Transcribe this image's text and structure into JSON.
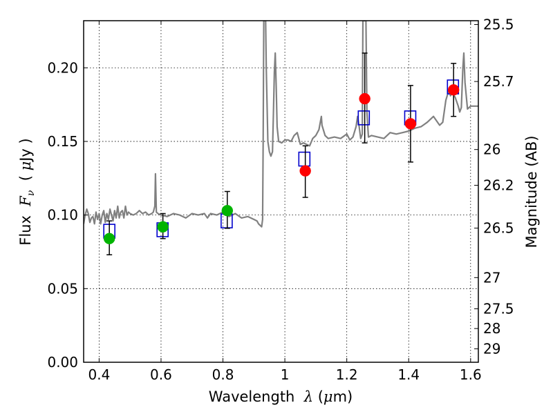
{
  "chart_data": {
    "type": "scatter",
    "xlabel": {
      "pre": "Wavelength  ",
      "sym": "λ",
      "post": " (",
      "mu": "μ",
      "unit": "m)"
    },
    "ylabel": {
      "pre": "Flux  ",
      "sym": "F",
      "sub": "ν",
      "mid": "  ( ",
      "mu": "μ",
      "unit": "Jy )"
    },
    "ylabel_right": "Magnitude (AB)",
    "xlim": [
      0.35,
      1.625
    ],
    "ylim": [
      0.0,
      0.232
    ],
    "x_ticks": [
      0.4,
      0.6,
      0.8,
      1.0,
      1.2,
      1.4,
      1.6
    ],
    "x_tick_labels": [
      "0.4",
      "0.6",
      "0.8",
      "1",
      "1.2",
      "1.4",
      "1.6"
    ],
    "y_ticks": [
      0.0,
      0.05,
      0.1,
      0.15,
      0.2
    ],
    "y_tick_labels": [
      "0.00",
      "0.05",
      "0.10",
      "0.15",
      "0.20"
    ],
    "mag_ticks": [
      {
        "value": 0.2294,
        "label": "25.5"
      },
      {
        "value": 0.1907,
        "label": "25.7"
      },
      {
        "value": 0.1445,
        "label": "26"
      },
      {
        "value": 0.1202,
        "label": "26.2"
      },
      {
        "value": 0.0911,
        "label": "26.5"
      },
      {
        "value": 0.0575,
        "label": "27"
      },
      {
        "value": 0.0363,
        "label": "27.5"
      },
      {
        "value": 0.0229,
        "label": "28"
      },
      {
        "value": 0.0091,
        "label": "29"
      }
    ],
    "grid": true,
    "colors": {
      "model_spectrum": "#808080",
      "model_bands": "#0000cc",
      "optical_points": "#00b400",
      "nir_points": "#ff0000",
      "errorbars": "#000000"
    },
    "series": [
      {
        "kind": "line",
        "points": [
          [
            0.35,
            0.094
          ],
          [
            0.355,
            0.1
          ],
          [
            0.36,
            0.104
          ],
          [
            0.365,
            0.101
          ],
          [
            0.37,
            0.095
          ],
          [
            0.375,
            0.098
          ],
          [
            0.38,
            0.099
          ],
          [
            0.385,
            0.094
          ],
          [
            0.39,
            0.102
          ],
          [
            0.395,
            0.097
          ],
          [
            0.4,
            0.101
          ],
          [
            0.405,
            0.094
          ],
          [
            0.41,
            0.1
          ],
          [
            0.415,
            0.103
          ],
          [
            0.42,
            0.095
          ],
          [
            0.425,
            0.101
          ],
          [
            0.43,
            0.097
          ],
          [
            0.435,
            0.104
          ],
          [
            0.44,
            0.1
          ],
          [
            0.445,
            0.096
          ],
          [
            0.45,
            0.103
          ],
          [
            0.455,
            0.098
          ],
          [
            0.46,
            0.106
          ],
          [
            0.465,
            0.098
          ],
          [
            0.47,
            0.102
          ],
          [
            0.475,
            0.103
          ],
          [
            0.48,
            0.098
          ],
          [
            0.485,
            0.106
          ],
          [
            0.49,
            0.1
          ],
          [
            0.495,
            0.102
          ],
          [
            0.5,
            0.101
          ],
          [
            0.51,
            0.1
          ],
          [
            0.52,
            0.101
          ],
          [
            0.53,
            0.103
          ],
          [
            0.54,
            0.101
          ],
          [
            0.55,
            0.102
          ],
          [
            0.56,
            0.1
          ],
          [
            0.57,
            0.101
          ],
          [
            0.575,
            0.102
          ],
          [
            0.58,
            0.106
          ],
          [
            0.582,
            0.128
          ],
          [
            0.585,
            0.102
          ],
          [
            0.59,
            0.101
          ],
          [
            0.6,
            0.1
          ],
          [
            0.62,
            0.099
          ],
          [
            0.64,
            0.101
          ],
          [
            0.66,
            0.1
          ],
          [
            0.68,
            0.098
          ],
          [
            0.7,
            0.101
          ],
          [
            0.72,
            0.1
          ],
          [
            0.74,
            0.101
          ],
          [
            0.75,
            0.098
          ],
          [
            0.76,
            0.101
          ],
          [
            0.78,
            0.1
          ],
          [
            0.8,
            0.102
          ],
          [
            0.82,
            0.099
          ],
          [
            0.84,
            0.101
          ],
          [
            0.86,
            0.098
          ],
          [
            0.88,
            0.099
          ],
          [
            0.9,
            0.097
          ],
          [
            0.91,
            0.096
          ],
          [
            0.915,
            0.094
          ],
          [
            0.92,
            0.093
          ],
          [
            0.925,
            0.092
          ],
          [
            0.928,
            0.097
          ],
          [
            0.93,
            0.15
          ],
          [
            0.932,
            0.232
          ],
          [
            0.938,
            0.232
          ],
          [
            0.94,
            0.2
          ],
          [
            0.945,
            0.15
          ],
          [
            0.95,
            0.143
          ],
          [
            0.955,
            0.14
          ],
          [
            0.96,
            0.143
          ],
          [
            0.963,
            0.168
          ],
          [
            0.966,
            0.197
          ],
          [
            0.969,
            0.21
          ],
          [
            0.972,
            0.187
          ],
          [
            0.975,
            0.16
          ],
          [
            0.98,
            0.15
          ],
          [
            0.99,
            0.149
          ],
          [
            1.0,
            0.151
          ],
          [
            1.01,
            0.151
          ],
          [
            1.02,
            0.15
          ],
          [
            1.03,
            0.154
          ],
          [
            1.04,
            0.156
          ],
          [
            1.05,
            0.148
          ],
          [
            1.06,
            0.149
          ],
          [
            1.07,
            0.148
          ],
          [
            1.08,
            0.147
          ],
          [
            1.09,
            0.152
          ],
          [
            1.1,
            0.154
          ],
          [
            1.11,
            0.158
          ],
          [
            1.118,
            0.167
          ],
          [
            1.12,
            0.161
          ],
          [
            1.13,
            0.154
          ],
          [
            1.14,
            0.152
          ],
          [
            1.16,
            0.153
          ],
          [
            1.18,
            0.152
          ],
          [
            1.2,
            0.155
          ],
          [
            1.21,
            0.151
          ],
          [
            1.22,
            0.153
          ],
          [
            1.23,
            0.16
          ],
          [
            1.235,
            0.167
          ],
          [
            1.24,
            0.16
          ],
          [
            1.245,
            0.152
          ],
          [
            1.25,
            0.155
          ],
          [
            1.252,
            0.232
          ],
          [
            1.262,
            0.232
          ],
          [
            1.265,
            0.17
          ],
          [
            1.27,
            0.153
          ],
          [
            1.28,
            0.154
          ],
          [
            1.3,
            0.153
          ],
          [
            1.32,
            0.152
          ],
          [
            1.34,
            0.156
          ],
          [
            1.36,
            0.155
          ],
          [
            1.38,
            0.156
          ],
          [
            1.4,
            0.157
          ],
          [
            1.42,
            0.159
          ],
          [
            1.44,
            0.16
          ],
          [
            1.46,
            0.163
          ],
          [
            1.48,
            0.167
          ],
          [
            1.5,
            0.161
          ],
          [
            1.51,
            0.163
          ],
          [
            1.52,
            0.178
          ],
          [
            1.53,
            0.185
          ],
          [
            1.535,
            0.181
          ],
          [
            1.54,
            0.183
          ],
          [
            1.55,
            0.18
          ],
          [
            1.56,
            0.174
          ],
          [
            1.565,
            0.17
          ],
          [
            1.57,
            0.173
          ],
          [
            1.575,
            0.2
          ],
          [
            1.578,
            0.21
          ],
          [
            1.582,
            0.19
          ],
          [
            1.59,
            0.172
          ],
          [
            1.6,
            0.174
          ],
          [
            1.625,
            0.174
          ]
        ]
      },
      {
        "kind": "squares",
        "points": [
          [
            0.433,
            0.089
          ],
          [
            0.605,
            0.09
          ],
          [
            0.812,
            0.096
          ],
          [
            1.063,
            0.138
          ],
          [
            1.255,
            0.166
          ],
          [
            1.405,
            0.166
          ],
          [
            1.543,
            0.187
          ]
        ]
      },
      {
        "kind": "circles",
        "color_key": "optical_points",
        "points": [
          {
            "x": 0.433,
            "y": 0.084,
            "lo": 0.073,
            "hi": 0.096
          },
          {
            "x": 0.606,
            "y": 0.092,
            "lo": 0.084,
            "hi": 0.101
          },
          {
            "x": 0.814,
            "y": 0.103,
            "lo": 0.091,
            "hi": 0.116
          }
        ]
      },
      {
        "kind": "circles",
        "color_key": "nir_points",
        "points": [
          {
            "x": 1.066,
            "y": 0.13,
            "lo": 0.112,
            "hi": 0.147
          },
          {
            "x": 1.258,
            "y": 0.179,
            "lo": 0.149,
            "hi": 0.21
          },
          {
            "x": 1.406,
            "y": 0.162,
            "lo": 0.136,
            "hi": 0.188
          },
          {
            "x": 1.545,
            "y": 0.185,
            "lo": 0.167,
            "hi": 0.203
          }
        ]
      }
    ]
  }
}
